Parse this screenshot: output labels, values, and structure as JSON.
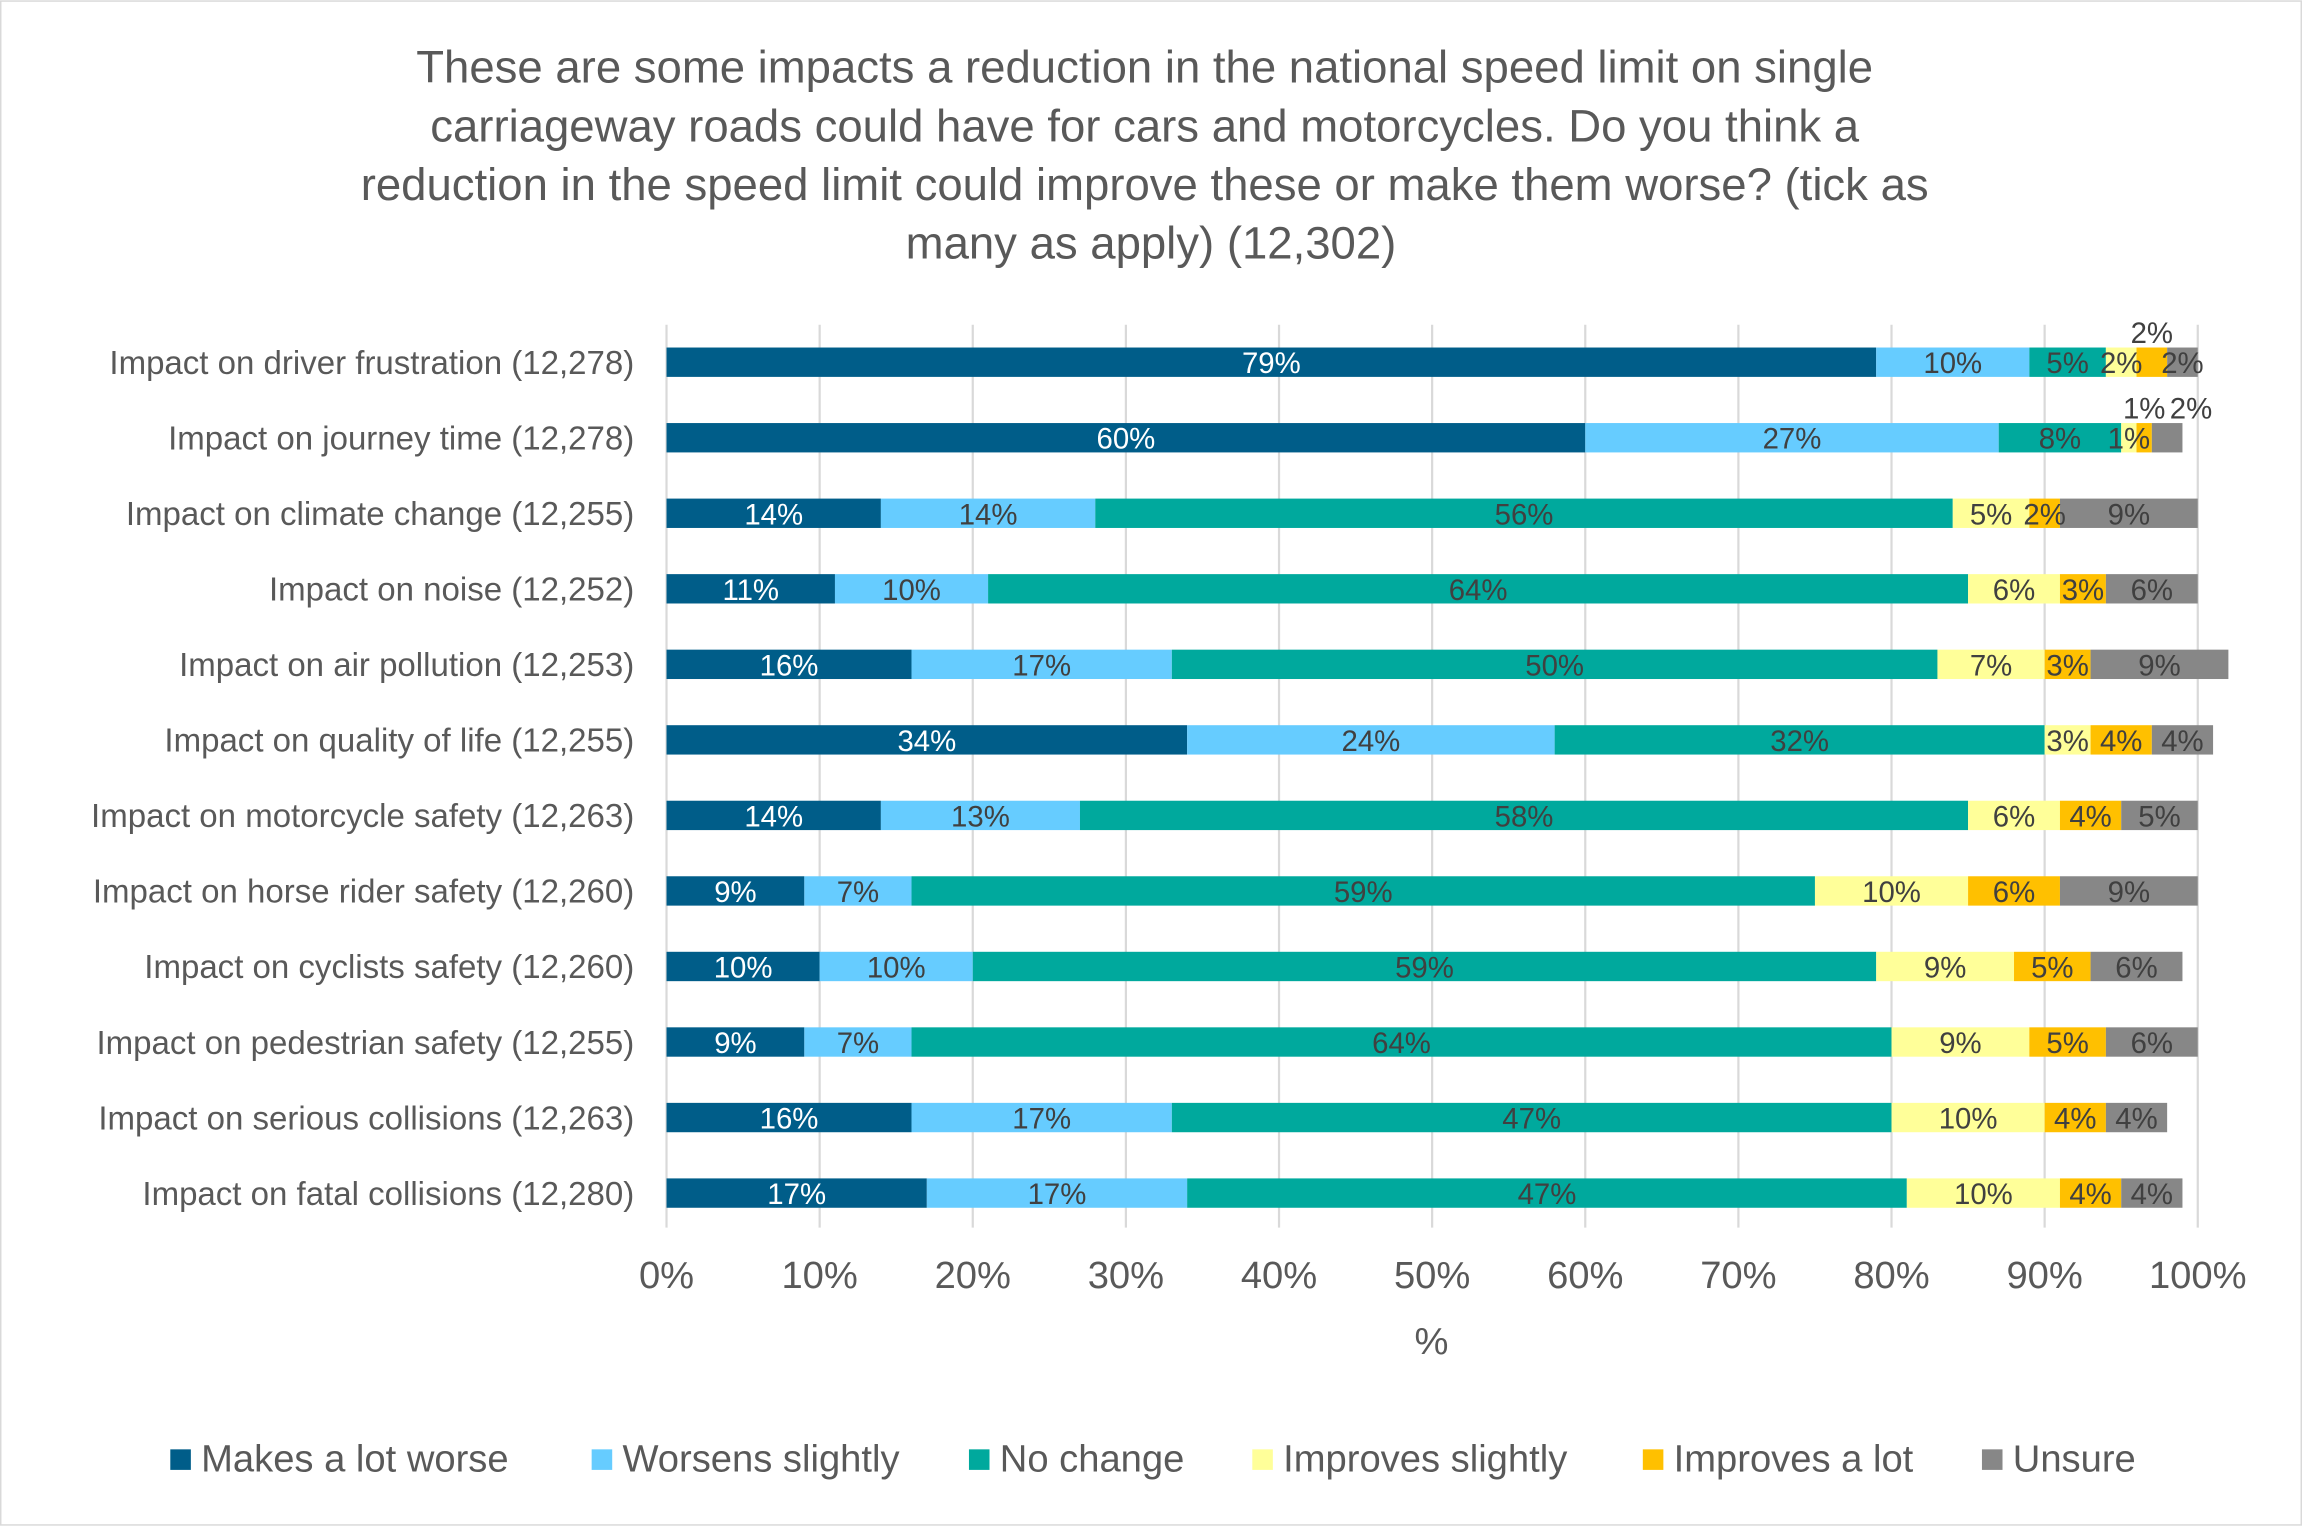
{
  "chart_data": {
    "type": "bar",
    "orientation": "horizontal",
    "stacked": "100%",
    "title": "These are some impacts a reduction in the national speed limit on single carriageway roads could have for cars and motorcycles.  Do you think a reduction in the speed limit could improve these or make them worse? (tick as many as apply) (12,302)",
    "title_lines": [
      "These are some impacts a reduction in the national speed limit on single",
      "carriageway roads could have for cars and motorcycles.  Do you think a",
      "reduction in the speed limit could improve these or make them worse? (tick as",
      "many as apply) (12,302)"
    ],
    "xlabel": "%",
    "ylabel": "",
    "xlim": [
      0,
      100
    ],
    "x_ticks": [
      "0%",
      "10%",
      "20%",
      "30%",
      "40%",
      "50%",
      "60%",
      "70%",
      "80%",
      "90%",
      "100%"
    ],
    "grid": "vertical",
    "legend_position": "bottom",
    "categories": [
      "Impact on driver frustration (12,278)",
      "Impact on journey time (12,278)",
      "Impact on climate change (12,255)",
      "Impact on noise (12,252)",
      "Impact on air pollution (12,253)",
      "Impact on quality of life (12,255)",
      "Impact on motorcycle safety (12,263)",
      "Impact on horse rider safety (12,260)",
      "Impact on cyclists safety (12,260)",
      "Impact on pedestrian safety (12,255)",
      "Impact on serious collisions (12,263)",
      "Impact on fatal collisions (12,280)"
    ],
    "series": [
      {
        "name": "Makes a lot worse",
        "color": "#005d89",
        "label_color": "#ffffff",
        "values": [
          79,
          60,
          14,
          11,
          16,
          34,
          14,
          9,
          10,
          9,
          16,
          17
        ]
      },
      {
        "name": "Worsens slightly",
        "color": "#66ccff",
        "label_color": "#404040",
        "values": [
          10,
          27,
          14,
          10,
          17,
          24,
          13,
          7,
          10,
          7,
          17,
          17
        ]
      },
      {
        "name": "No change",
        "color": "#00a99d",
        "label_color": "#404040",
        "values": [
          5,
          8,
          56,
          64,
          50,
          32,
          58,
          59,
          59,
          64,
          47,
          47
        ]
      },
      {
        "name": "Improves slightly",
        "color": "#ffff99",
        "label_color": "#404040",
        "values": [
          2,
          1,
          5,
          6,
          7,
          3,
          6,
          10,
          9,
          9,
          10,
          10
        ]
      },
      {
        "name": "Improves a lot",
        "color": "#ffc000",
        "label_color": "#404040",
        "values": [
          2,
          1,
          2,
          3,
          3,
          4,
          4,
          6,
          5,
          5,
          4,
          4
        ]
      },
      {
        "name": "Unsure",
        "color": "#878787",
        "label_color": "#404040",
        "values": [
          2,
          2,
          9,
          6,
          9,
          4,
          5,
          9,
          6,
          6,
          4,
          4
        ]
      }
    ]
  }
}
